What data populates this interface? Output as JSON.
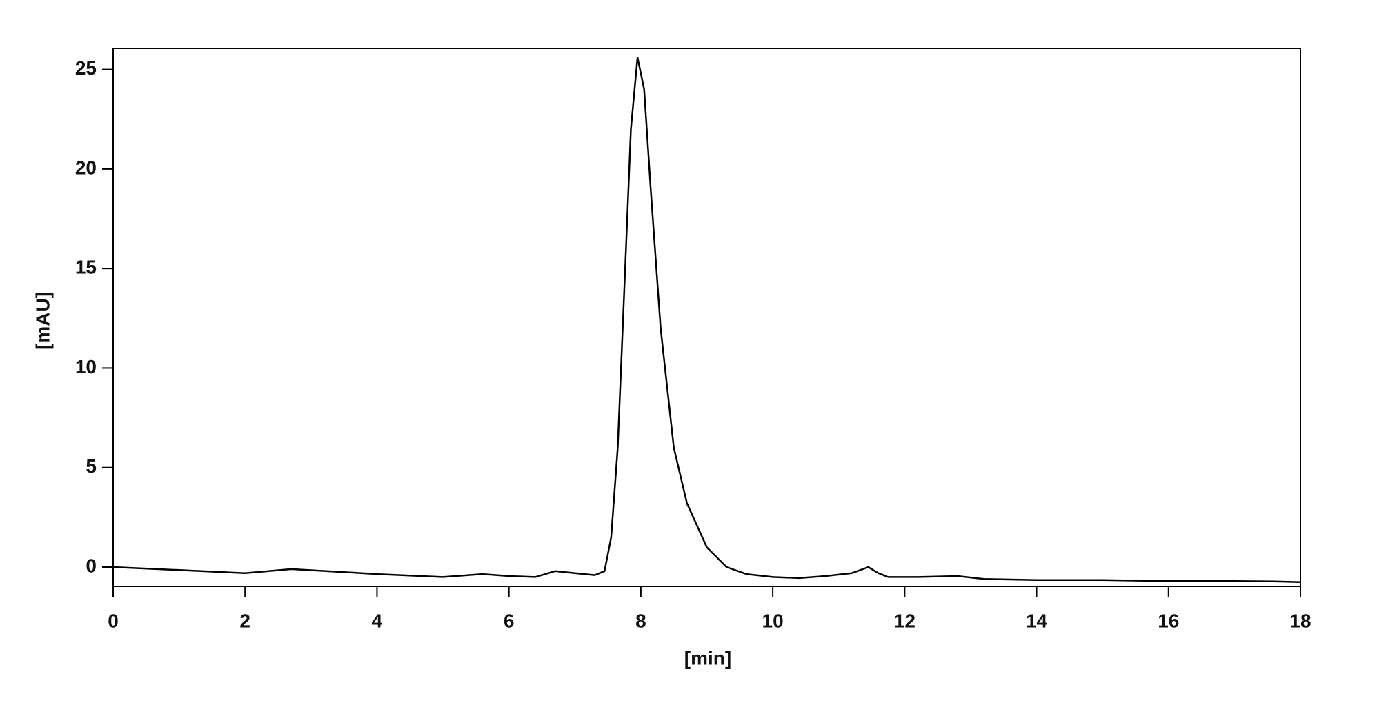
{
  "chart_data": {
    "type": "line",
    "x_label": "[min]",
    "y_label": "[mAU]",
    "xlim": [
      0,
      18
    ],
    "xticks": [
      0,
      2,
      4,
      6,
      8,
      10,
      12,
      14,
      16,
      18
    ],
    "ylim": [
      -0.97,
      26.06
    ],
    "yticks": [
      0,
      5,
      10,
      15,
      20,
      25
    ],
    "grid": false,
    "series": [
      {
        "color": "#000000",
        "x": [
          0,
          1,
          2,
          2.7,
          3.5,
          4,
          5,
          5.6,
          6,
          6.4,
          6.7,
          7.0,
          7.3,
          7.45,
          7.55,
          7.65,
          7.75,
          7.85,
          7.95,
          8.05,
          8.15,
          8.3,
          8.5,
          8.7,
          9.0,
          9.3,
          9.6,
          10.0,
          10.4,
          10.8,
          11.2,
          11.45,
          11.6,
          11.75,
          12.2,
          12.8,
          13.2,
          14,
          15,
          16,
          17,
          17.6,
          18
        ],
        "values": [
          0.0,
          -0.15,
          -0.3,
          -0.1,
          -0.25,
          -0.35,
          -0.5,
          -0.35,
          -0.45,
          -0.5,
          -0.2,
          -0.3,
          -0.4,
          -0.2,
          1.5,
          6,
          14,
          22,
          25.6,
          24,
          19,
          12,
          6,
          3.2,
          1.0,
          0.0,
          -0.35,
          -0.5,
          -0.55,
          -0.45,
          -0.3,
          0.0,
          -0.3,
          -0.5,
          -0.5,
          -0.45,
          -0.6,
          -0.65,
          -0.65,
          -0.7,
          -0.7,
          -0.72,
          -0.75
        ]
      }
    ]
  }
}
